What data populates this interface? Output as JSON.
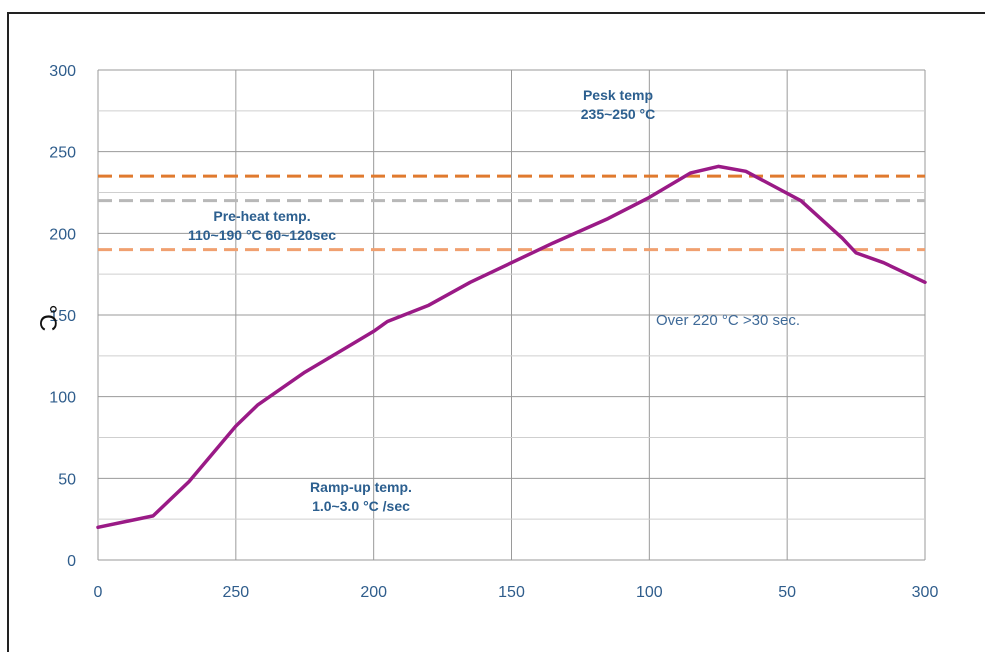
{
  "chart_data": {
    "type": "line",
    "xlabel": "",
    "ylabel": "°C",
    "x_tick_labels": [
      "0",
      "250",
      "200",
      "150",
      "100",
      "50",
      "300"
    ],
    "y_tick_labels": [
      "0",
      "50",
      "100",
      "150",
      "200",
      "250",
      "300"
    ],
    "ylim": [
      0,
      300
    ],
    "grid": true,
    "legend": "none",
    "series": [
      {
        "x": [
          0,
          20,
          33,
          50,
          58,
          75,
          90,
          100,
          105,
          120,
          135,
          150,
          165,
          185,
          200,
          215,
          225,
          235,
          245,
          255,
          270,
          275,
          285,
          300
        ],
        "y": [
          20,
          27,
          48,
          82,
          95,
          115,
          130,
          140,
          146,
          156,
          170,
          182,
          194,
          209,
          222,
          237,
          241,
          238,
          229,
          220,
          197,
          188,
          182,
          170
        ],
        "color": "#9a1a86"
      }
    ],
    "reference_lines": [
      {
        "y": 235,
        "color": "#e07a2e"
      },
      {
        "y": 220,
        "color": "#b8b8b8"
      },
      {
        "y": 190,
        "color": "#f0a070"
      }
    ],
    "annotations": {
      "peak_line1": "Pesk temp",
      "peak_line2": "235~250 °C",
      "preheat_line1": "Pre-heat temp.",
      "preheat_line2": "110~190 °C 60~120sec",
      "over": "Over 220 °C >30 sec.",
      "ramp_line1": "Ramp-up temp.",
      "ramp_line2": "1.0~3.0 °C /sec"
    }
  }
}
